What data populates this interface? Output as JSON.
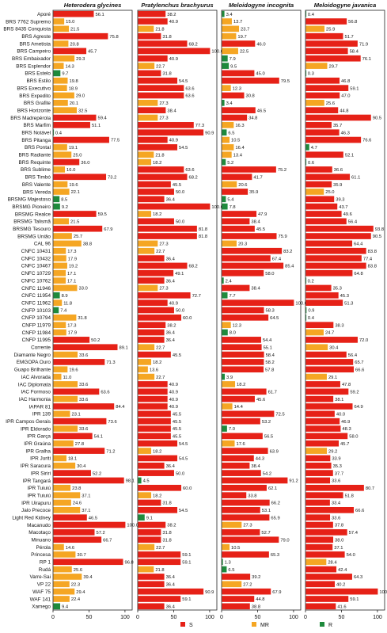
{
  "legend": [
    {
      "key": "S",
      "label": "S",
      "color": "#e62117"
    },
    {
      "key": "MR",
      "label": "MR",
      "color": "#f5a623"
    },
    {
      "key": "R",
      "label": "R",
      "color": "#1e8a3c"
    }
  ],
  "chart_data": {
    "type": "bar",
    "subtype": "horizontal-single-bar-per-row",
    "xlim": [
      0,
      110
    ],
    "xticks": [
      0,
      50,
      100
    ],
    "categories": [
      "Aporé",
      "BRS 7762 Supremo",
      "BRS 8435 Conquista",
      "BRS Agreste",
      "BRS Ametista",
      "BRS Campeiro",
      "BRS Embaixador",
      "BRS Esplendor",
      "BRS Estelo",
      "BRS Estilo",
      "BRS Executivo",
      "BRS Expedito",
      "BRS Grafite",
      "BRS Horizonte",
      "BRS Madrepérola",
      "BRS Marfim",
      "BRS Notável",
      "BRS Pitanga",
      "BRS Pontal",
      "BRS Radiante",
      "BRS Requinte",
      "BRS Sublime",
      "BRS Timbó",
      "BRS Valente",
      "BRS Vereda",
      "BRSMG Majestoso",
      "BRSMG Pioneiro",
      "BRSMG Realce",
      "BRSMG Talismã",
      "BRSMG Tesouro",
      "BRSMG União",
      "CAL 96",
      "CNFC 10431",
      "CNFC 10432",
      "CNFC 10467",
      "CNFC 10729",
      "CNFC 10762",
      "CNFC 11946",
      "CNFC 11954",
      "CNFC 11962",
      "CNFP 10103",
      "CNFP 10794",
      "CNFP 11979",
      "CNFP 11984",
      "CNFP 11995",
      "Corrente",
      "Diamante Negro",
      "EMGOPA Ouro",
      "Guapo Brilhante",
      "IAC Alvorada",
      "IAC Diplomata",
      "IAC Formoso",
      "IAC Harmonia",
      "IAPAR 81",
      "IPR 139",
      "IPR Campos Gerais",
      "IPR Eldorado",
      "IPR Garça",
      "IPR Graúna",
      "IPR Gralha",
      "IPR Juriti",
      "IPR Saracura",
      "IPR Siriri",
      "IPR Tangará",
      "IPR Tuiuiú",
      "IPR Tuiuiú",
      "IPR Uirapuru",
      "Jalo Precoce",
      "Light Red Kidney",
      "Macanudo",
      "Macotaço",
      "Minuano",
      "Pérola",
      "Princesa",
      "RP 1",
      "Rudá",
      "Varre-Sai",
      "VP 22",
      "WAF 75",
      "WAF 141",
      "Xamego"
    ],
    "panels": [
      {
        "title": "Heterodera glycines",
        "values": [
          56.1,
          15.0,
          21.5,
          75.8,
          20.8,
          45.7,
          29.3,
          14.3,
          9.7,
          19.8,
          18.9,
          29.0,
          20.1,
          32.5,
          59.4,
          51.1,
          0.4,
          77.5,
          19.1,
          25.0,
          36.0,
          16.0,
          73.2,
          19.6,
          22.1,
          8.5,
          9.2,
          59.5,
          21.5,
          67.9,
          25.7,
          38.8,
          17.3,
          17.9,
          19.2,
          17.1,
          17.1,
          33.0,
          8.9,
          11.8,
          7.4,
          31.8,
          17.3,
          17.9,
          50.2,
          89.1,
          33.6,
          71.3,
          19.6,
          11.0,
          33.6,
          63.6,
          33.6,
          84.4,
          23.1,
          73.6,
          33.6,
          54.1,
          27.8,
          71.2,
          18.1,
          30.4,
          52.2,
          98.1,
          23.8,
          37.1,
          24.6,
          37.1,
          46.5,
          100.0,
          57.2,
          66.7,
          14.6,
          30.7,
          96.8,
          25.6,
          39.4,
          22.3,
          29.4,
          22.4,
          9.4
        ],
        "classes": [
          "S",
          "MR",
          "MR",
          "S",
          "MR",
          "S",
          "MR",
          "MR",
          "R",
          "MR",
          "MR",
          "MR",
          "MR",
          "MR",
          "S",
          "S",
          "R",
          "S",
          "MR",
          "MR",
          "S",
          "MR",
          "S",
          "MR",
          "MR",
          "R",
          "R",
          "S",
          "MR",
          "S",
          "MR",
          "MR",
          "MR",
          "MR",
          "MR",
          "MR",
          "MR",
          "MR",
          "R",
          "MR",
          "R",
          "MR",
          "MR",
          "MR",
          "S",
          "S",
          "MR",
          "S",
          "MR",
          "MR",
          "MR",
          "S",
          "MR",
          "S",
          "MR",
          "S",
          "MR",
          "S",
          "MR",
          "S",
          "MR",
          "MR",
          "S",
          "S",
          "MR",
          "MR",
          "MR",
          "MR",
          "S",
          "S",
          "S",
          "S",
          "MR",
          "MR",
          "S",
          "MR",
          "MR",
          "MR",
          "MR",
          "MR",
          "R"
        ]
      },
      {
        "title": "Pratylenchus brachyurus",
        "values": [
          38.2,
          40.9,
          21.8,
          31.8,
          68.2,
          100.0,
          40.9,
          22.7,
          31.8,
          54.5,
          63.6,
          63.6,
          27.3,
          38.4,
          27.3,
          77.3,
          90.9,
          40.9,
          54.5,
          21.8,
          18.2,
          63.6,
          68.2,
          45.5,
          50.0,
          36.4,
          100.0,
          18.2,
          50.0,
          81.8,
          81.8,
          27.3,
          22.7,
          36.4,
          68.2,
          49.1,
          36.4,
          27.3,
          72.7,
          40.9,
          50.0,
          60.0,
          38.2,
          36.4,
          36.4,
          22.7,
          45.5,
          18.2,
          13.6,
          22.7,
          40.9,
          40.9,
          40.9,
          40.9,
          45.5,
          45.5,
          45.5,
          45.5,
          54.5,
          18.2,
          54.5,
          36.4,
          50.0,
          4.5,
          60.0,
          18.2,
          31.8,
          54.5,
          9.1,
          38.2,
          31.8,
          31.8,
          22.7,
          59.1,
          59.1,
          21.8,
          36.4,
          36.4,
          90.9,
          59.1,
          36.4
        ],
        "classes": [
          "S",
          "S",
          "MR",
          "S",
          "S",
          "S",
          "S",
          "MR",
          "S",
          "S",
          "S",
          "S",
          "MR",
          "S",
          "MR",
          "S",
          "S",
          "S",
          "S",
          "MR",
          "MR",
          "S",
          "S",
          "S",
          "S",
          "S",
          "S",
          "MR",
          "S",
          "S",
          "S",
          "MR",
          "MR",
          "S",
          "S",
          "S",
          "S",
          "MR",
          "S",
          "S",
          "S",
          "S",
          "S",
          "S",
          "S",
          "MR",
          "S",
          "MR",
          "MR",
          "MR",
          "S",
          "S",
          "S",
          "S",
          "S",
          "S",
          "S",
          "S",
          "S",
          "MR",
          "S",
          "S",
          "S",
          "R",
          "S",
          "MR",
          "S",
          "S",
          "R",
          "S",
          "S",
          "S",
          "MR",
          "S",
          "S",
          "MR",
          "S",
          "S",
          "S",
          "S",
          "S"
        ]
      },
      {
        "title": "Meloidogyne incognita",
        "values": [
          3.4,
          13.7,
          23.7,
          19.7,
          46.0,
          22.5,
          7.9,
          9.5,
          45.0,
          79.5,
          12.3,
          30.8,
          3.4,
          46.5,
          34.8,
          16.3,
          6.5,
          10.5,
          16.4,
          13.4,
          5.2,
          75.2,
          41.7,
          20.6,
          35.9,
          5.4,
          7.8,
          47.9,
          38.4,
          45.5,
          75.9,
          20.3,
          83.2,
          67.4,
          85.4,
          58.0,
          2.4,
          38.4,
          7.7,
          100.0,
          58.3,
          64.5,
          12.3,
          8.0,
          54.4,
          55.1,
          58.4,
          58.2,
          57.8,
          3.9,
          18.2,
          61.7,
          45.6,
          14.4,
          72.5,
          53.2,
          7.0,
          56.5,
          17.6,
          63.9,
          44.3,
          38.4,
          54.2,
          91.2,
          62.1,
          33.8,
          66.2,
          53.1,
          65.9,
          27.3,
          52.7,
          79.0,
          10.5,
          65.3,
          1.3,
          6.5,
          39.2,
          27.2,
          67.9,
          44.8,
          38.8
        ],
        "classes": [
          "R",
          "MR",
          "MR",
          "MR",
          "S",
          "MR",
          "R",
          "R",
          "S",
          "S",
          "MR",
          "S",
          "R",
          "S",
          "S",
          "MR",
          "R",
          "MR",
          "MR",
          "MR",
          "R",
          "S",
          "S",
          "MR",
          "S",
          "R",
          "R",
          "S",
          "S",
          "S",
          "S",
          "MR",
          "S",
          "S",
          "S",
          "S",
          "R",
          "S",
          "R",
          "S",
          "S",
          "S",
          "MR",
          "R",
          "S",
          "S",
          "S",
          "S",
          "S",
          "R",
          "MR",
          "S",
          "S",
          "MR",
          "S",
          "S",
          "R",
          "S",
          "MR",
          "S",
          "S",
          "S",
          "S",
          "S",
          "S",
          "S",
          "S",
          "S",
          "S",
          "MR",
          "S",
          "S",
          "MR",
          "S",
          "R",
          "R",
          "S",
          "MR",
          "S",
          "S",
          "S"
        ]
      },
      {
        "title": "Meloidogyne javanica",
        "values": [
          0.4,
          56.8,
          25.9,
          51.7,
          71.9,
          58.4,
          76.1,
          29.7,
          0.3,
          46.8,
          59.1,
          47.0,
          25.6,
          44.8,
          90.5,
          35.7,
          46.3,
          76.6,
          4.7,
          52.1,
          0.6,
          36.6,
          61.1,
          35.9,
          25.0,
          39.3,
          43.7,
          49.6,
          56.4,
          93.8,
          90.5,
          64.4,
          83.8,
          77.4,
          83.8,
          64.8,
          0.2,
          35.3,
          45.3,
          51.3,
          0.9,
          0.4,
          38.3,
          24.7,
          72.0,
          30.4,
          56.4,
          65.7,
          66.6,
          29.1,
          47.8,
          59.2,
          38.1,
          64.9,
          40.0,
          46.9,
          48.3,
          58.0,
          45.7,
          29.2,
          33.9,
          35.3,
          37.7,
          33.6,
          80.7,
          51.8,
          33.4,
          66.6,
          33.6,
          37.8,
          57.4,
          38.0,
          37.1,
          54.0,
          28.4,
          42.4,
          64.3,
          40.2,
          100.0,
          59.1,
          41.6
        ],
        "classes": [
          "R",
          "S",
          "MR",
          "S",
          "S",
          "S",
          "S",
          "MR",
          "R",
          "S",
          "S",
          "S",
          "MR",
          "S",
          "S",
          "S",
          "S",
          "S",
          "R",
          "S",
          "R",
          "S",
          "S",
          "S",
          "MR",
          "S",
          "S",
          "S",
          "S",
          "S",
          "S",
          "S",
          "S",
          "S",
          "S",
          "S",
          "R",
          "S",
          "S",
          "S",
          "R",
          "R",
          "S",
          "MR",
          "S",
          "MR",
          "S",
          "S",
          "S",
          "MR",
          "S",
          "S",
          "S",
          "S",
          "S",
          "S",
          "S",
          "S",
          "S",
          "MR",
          "S",
          "S",
          "S",
          "S",
          "S",
          "S",
          "S",
          "S",
          "S",
          "S",
          "S",
          "S",
          "S",
          "S",
          "MR",
          "S",
          "S",
          "S",
          "S",
          "S",
          "S"
        ]
      }
    ]
  }
}
